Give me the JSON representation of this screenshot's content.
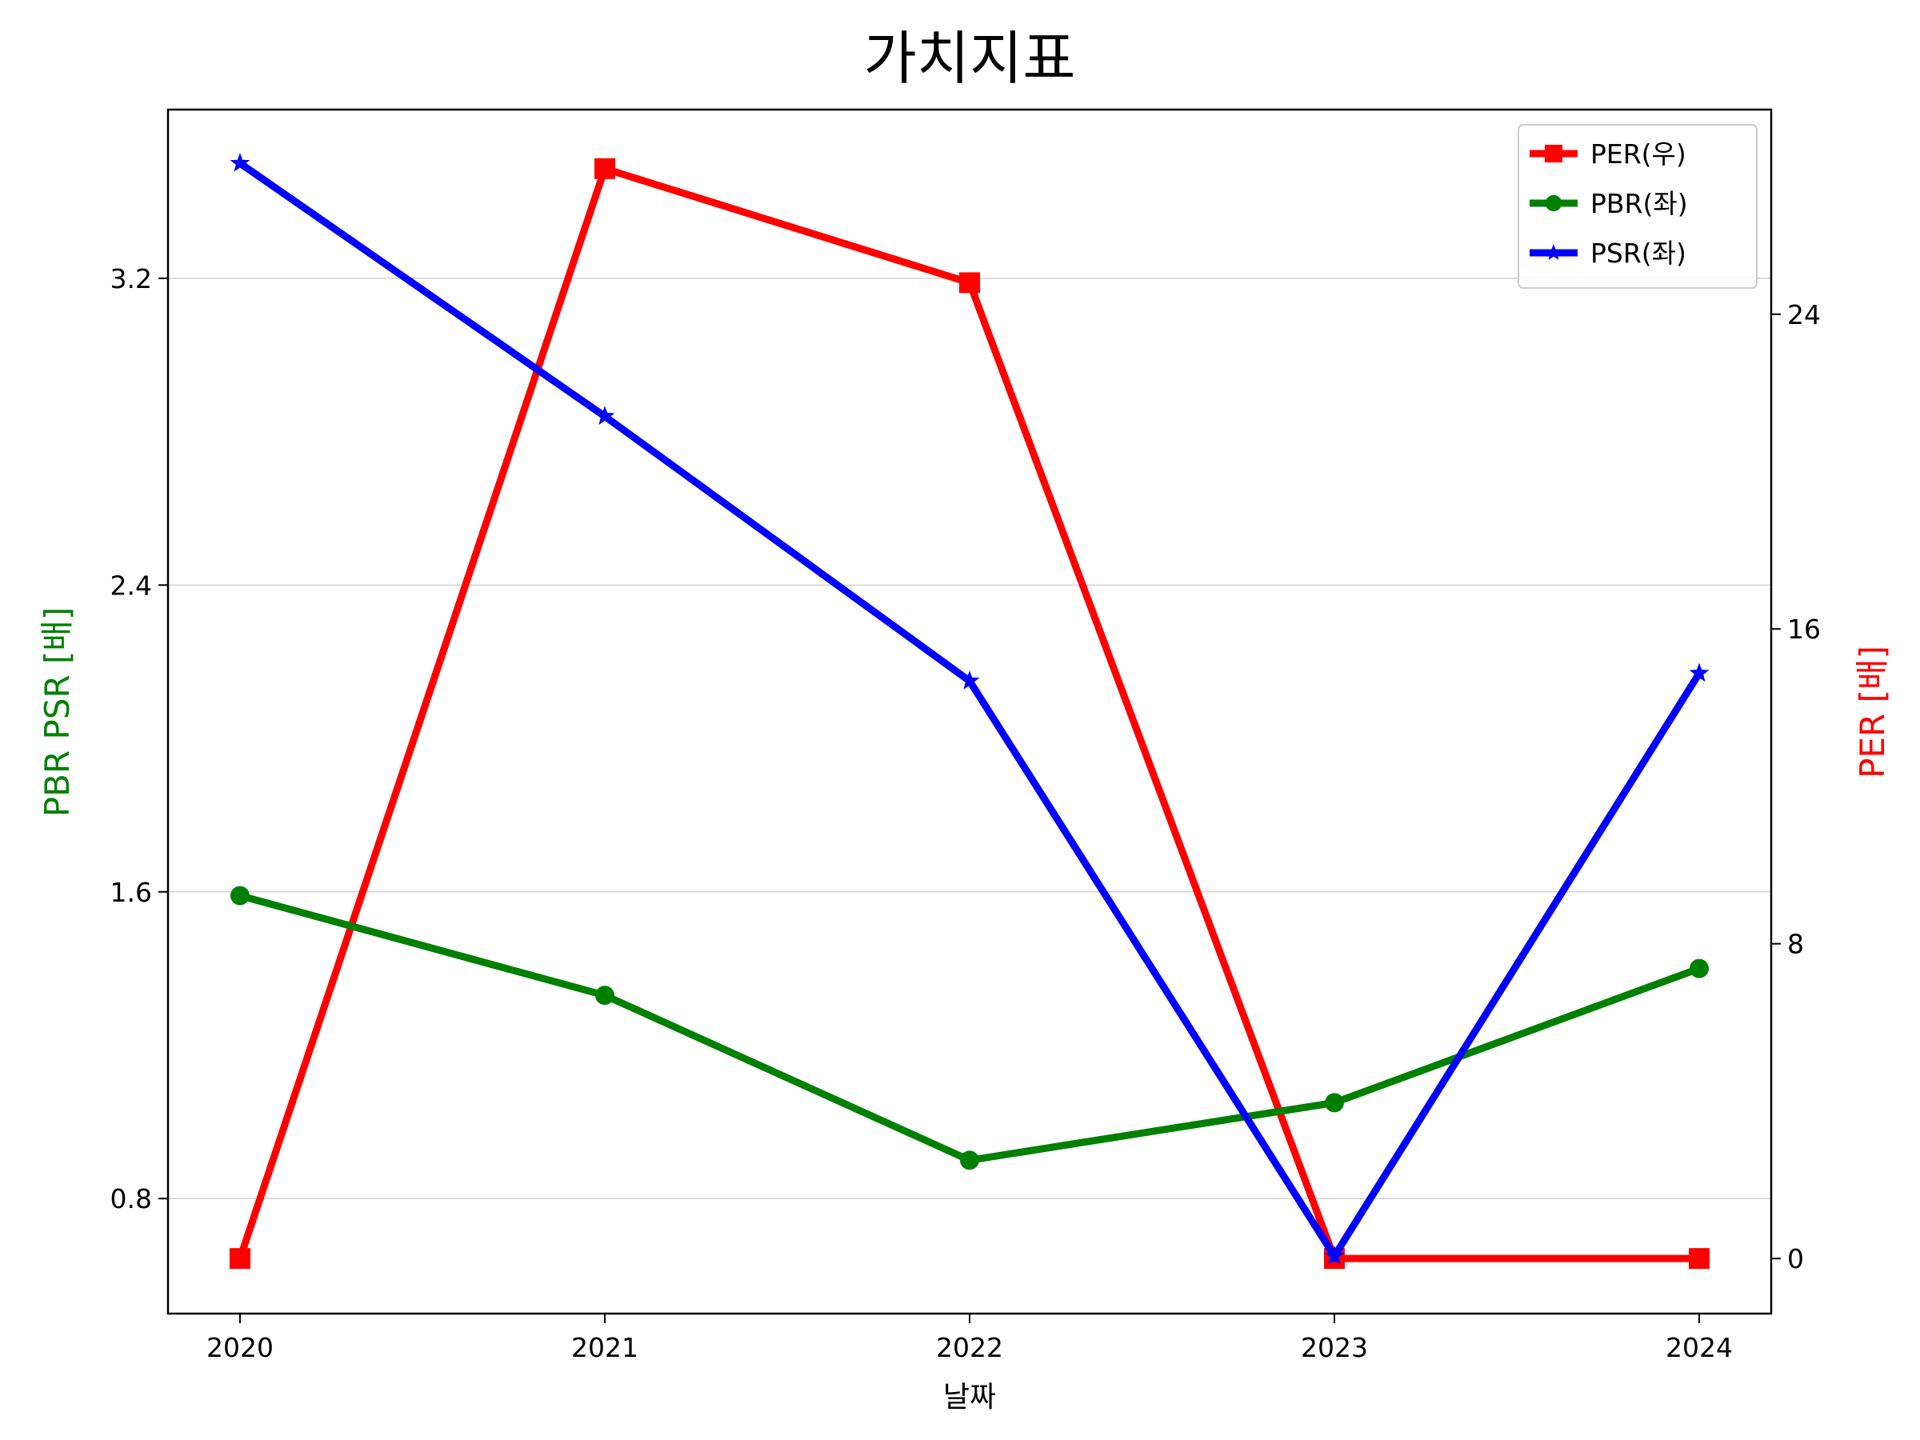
{
  "chart_data": {
    "type": "line",
    "title": "가치지표",
    "xlabel": "날짜",
    "ylabel_left": "PBR PSR [배]",
    "ylabel_right": "PER [배]",
    "categories": [
      "2020",
      "2021",
      "2022",
      "2023",
      "2024"
    ],
    "left_axis": {
      "ylim": [
        0.5,
        3.64
      ],
      "ticks": [
        "0.8",
        "1.6",
        "2.4",
        "3.2"
      ],
      "color": "#008000"
    },
    "right_axis": {
      "ylim": [
        -1.4,
        29.2
      ],
      "ticks": [
        "0",
        "8",
        "16",
        "24"
      ],
      "color": "#ff0000"
    },
    "grid": "horizontal",
    "legend_position": "top-right",
    "series": [
      {
        "name": "PER(우)",
        "axis": "right",
        "color": "#ff0000",
        "marker": "square",
        "values": [
          0,
          27.7,
          24.8,
          0,
          0
        ]
      },
      {
        "name": "PBR(좌)",
        "axis": "left",
        "color": "#008000",
        "marker": "circle",
        "values": [
          1.59,
          1.33,
          0.9,
          1.05,
          1.4
        ]
      },
      {
        "name": "PSR(좌)",
        "axis": "left",
        "color": "#0000ff",
        "marker": "star",
        "values": [
          3.5,
          2.84,
          2.15,
          0.65,
          2.17
        ]
      }
    ]
  }
}
